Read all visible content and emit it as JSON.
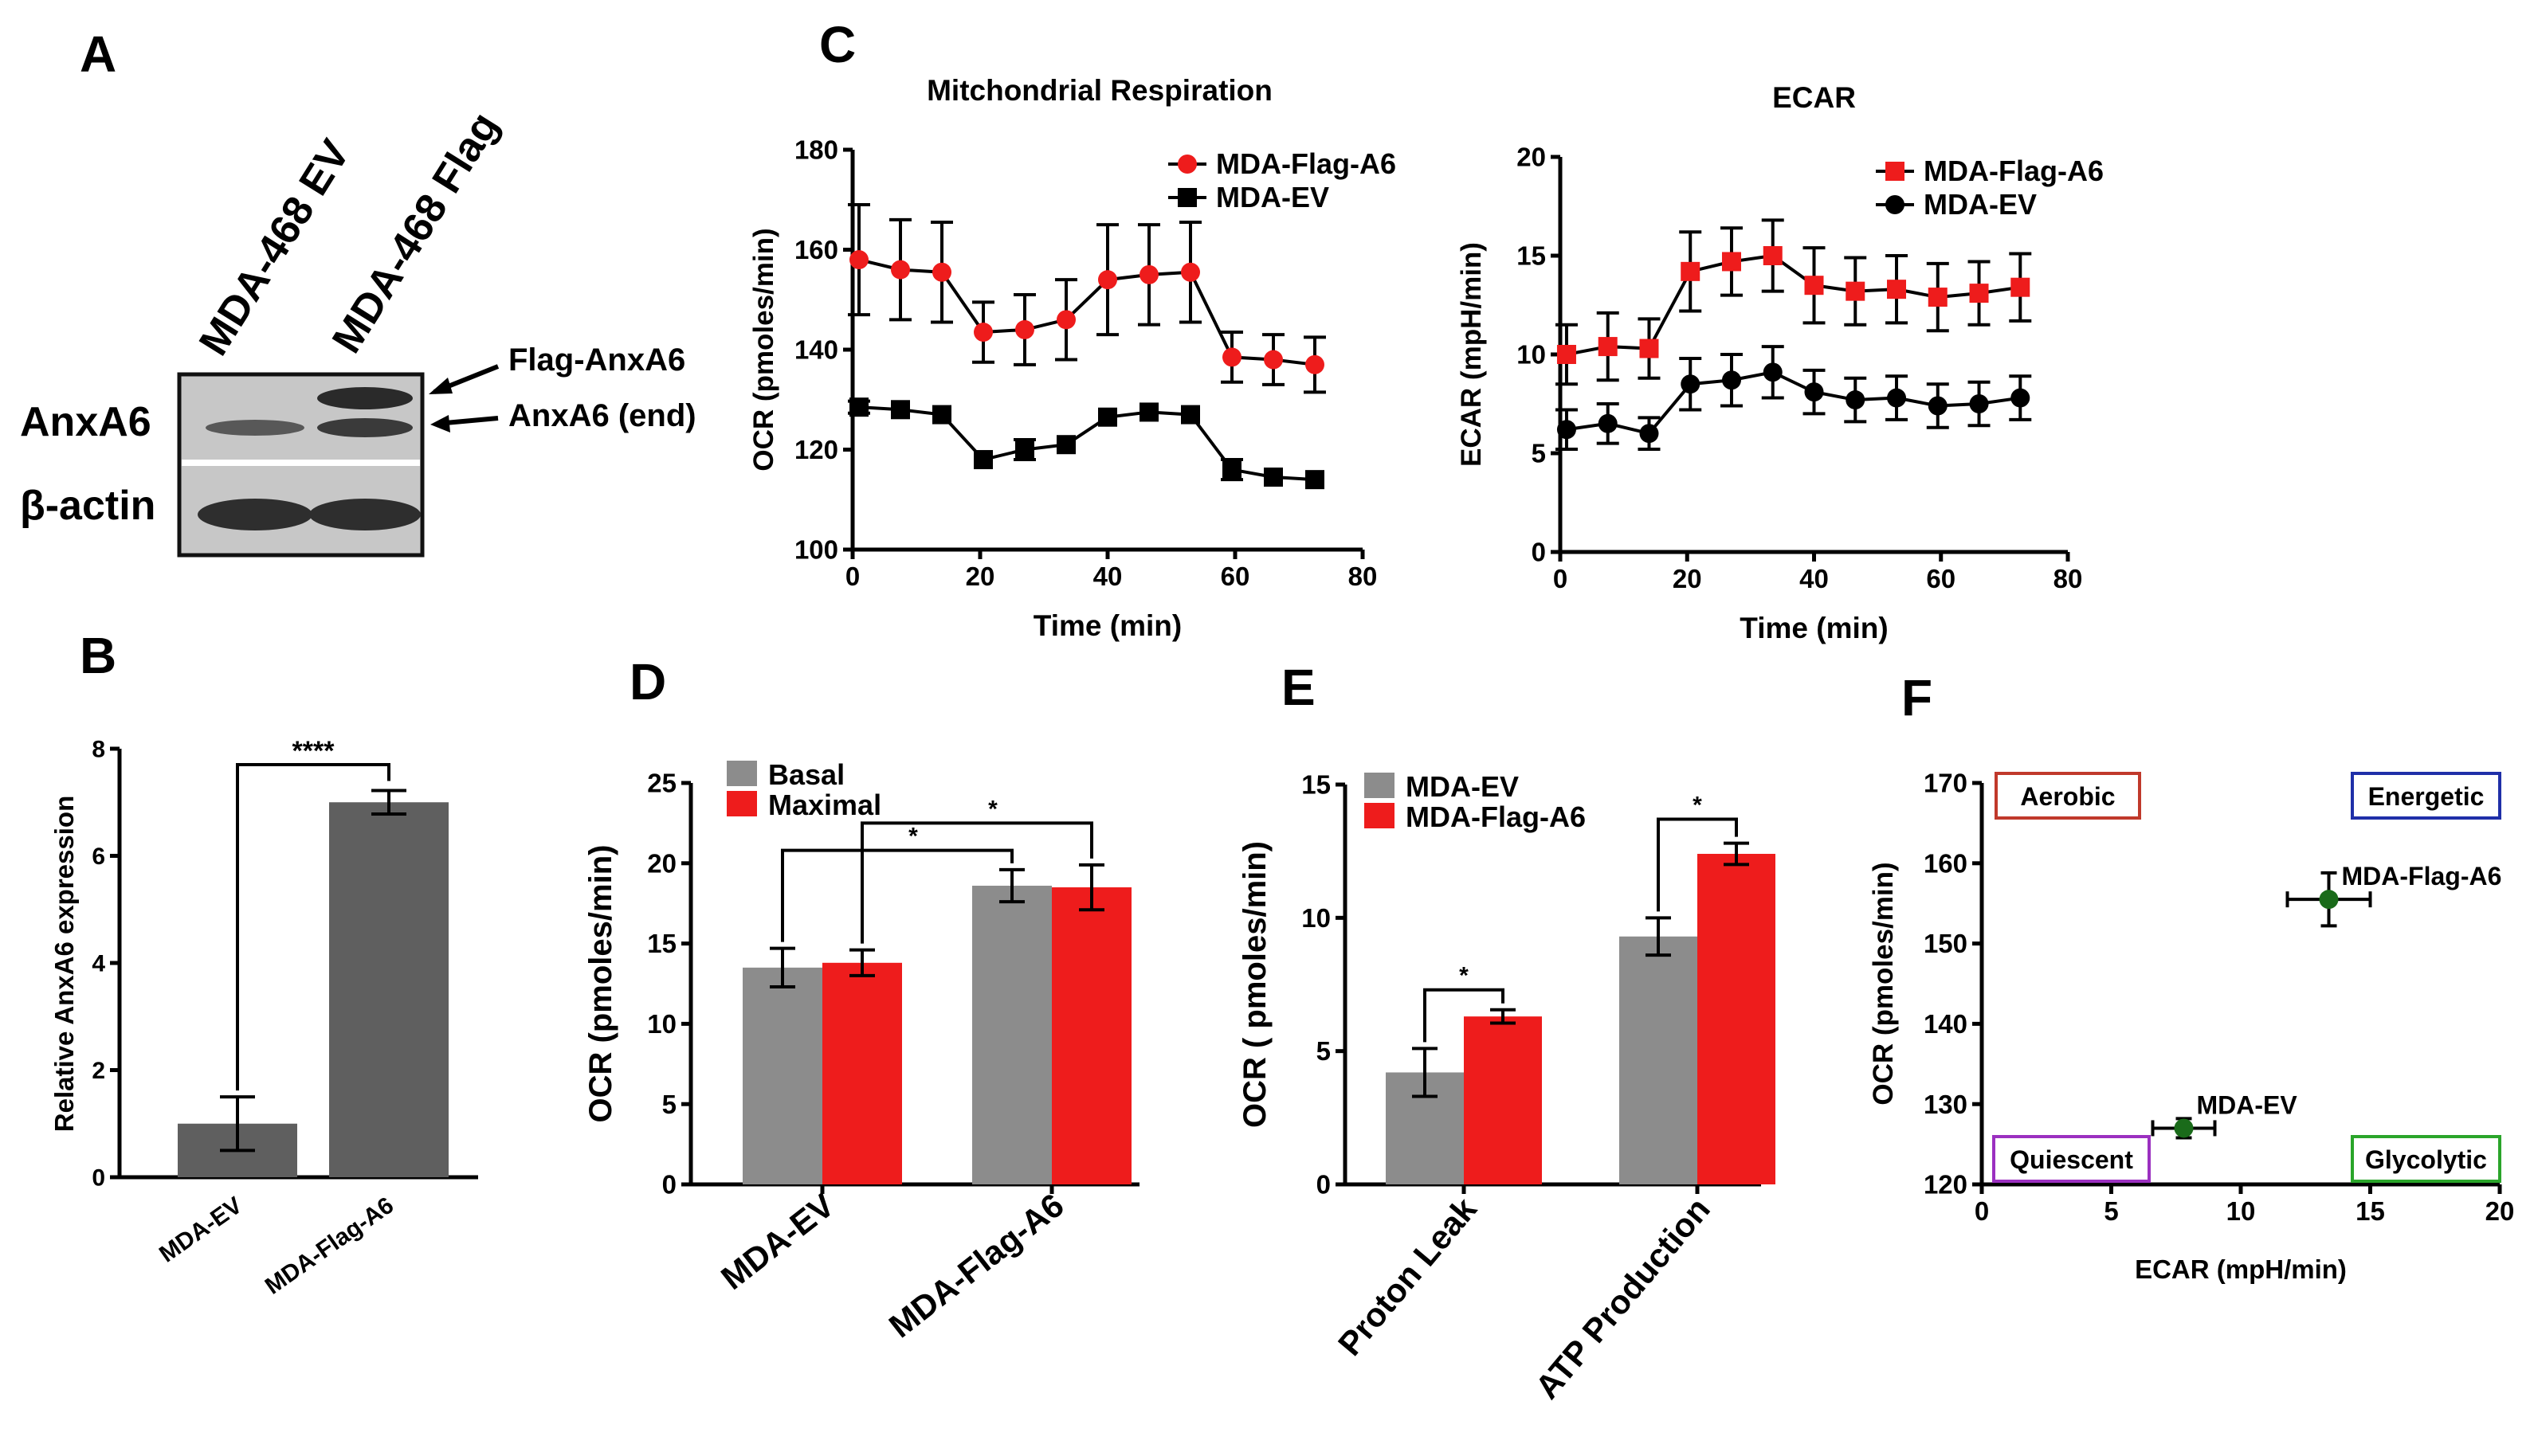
{
  "panels": {
    "a": "A",
    "b": "B",
    "c": "C",
    "d": "D",
    "e": "E",
    "f": "F"
  },
  "blot": {
    "lanes": [
      "MDA-468 EV",
      "MDA-468 Flag"
    ],
    "rows": [
      "AnxA6",
      "β-actin"
    ],
    "bands": [
      "Flag-AnxA6",
      "AnxA6 (end)"
    ]
  },
  "chart_data": [
    {
      "id": "B",
      "type": "bar",
      "categories": [
        "MDA-EV",
        "MDA-Flag-A6"
      ],
      "values": [
        1.0,
        7.0
      ],
      "errors": [
        0.5,
        0.22
      ],
      "color": "#5f5f5f",
      "ylabel": "Relative AnxA6 expression",
      "ylim": [
        0,
        8
      ],
      "yticks": [
        0,
        2,
        4,
        6,
        8
      ],
      "significance": "****"
    },
    {
      "id": "C1",
      "type": "line",
      "title": "Mitchondrial Respiration",
      "xlabel": "Time (min)",
      "ylabel": "OCR (pmoles/min)",
      "xlim": [
        0,
        80
      ],
      "ylim": [
        100,
        180
      ],
      "xticks": [
        0,
        20,
        40,
        60,
        80
      ],
      "yticks": [
        100,
        120,
        140,
        160,
        180
      ],
      "x": [
        1,
        7.5,
        14,
        20.5,
        27,
        33.5,
        40,
        46.5,
        53,
        59.5,
        66,
        72.5
      ],
      "series": [
        {
          "name": "MDA-Flag-A6",
          "color": "#ee1c1c",
          "marker": "circle",
          "values": [
            158,
            156,
            155.5,
            143.5,
            144,
            146,
            154,
            155,
            155.5,
            138.5,
            138,
            137
          ],
          "errors": [
            11,
            10,
            10,
            6,
            7,
            8,
            11,
            10,
            10,
            5,
            5,
            5.5
          ]
        },
        {
          "name": "MDA-EV",
          "color": "#000000",
          "marker": "square",
          "values": [
            128.5,
            128,
            127,
            118,
            120,
            121,
            126.5,
            127.5,
            127,
            116,
            114.5,
            114
          ],
          "errors": [
            1.2,
            1,
            1,
            1,
            2,
            1,
            1,
            1,
            1,
            2,
            1,
            1
          ]
        }
      ]
    },
    {
      "id": "C2",
      "type": "line",
      "title": "ECAR",
      "xlabel": "Time (min)",
      "ylabel": "ECAR (mpH/min)",
      "xlim": [
        0,
        80
      ],
      "ylim": [
        0,
        20
      ],
      "xticks": [
        0,
        20,
        40,
        60,
        80
      ],
      "yticks": [
        0,
        5,
        10,
        15,
        20
      ],
      "x": [
        1,
        7.5,
        14,
        20.5,
        27,
        33.5,
        40,
        46.5,
        53,
        59.5,
        66,
        72.5
      ],
      "series": [
        {
          "name": "MDA-Flag-A6",
          "color": "#ee1c1c",
          "marker": "square",
          "values": [
            10,
            10.4,
            10.3,
            14.2,
            14.7,
            15,
            13.5,
            13.2,
            13.3,
            12.9,
            13.1,
            13.4
          ],
          "errors": [
            1.5,
            1.7,
            1.5,
            2,
            1.7,
            1.8,
            1.9,
            1.7,
            1.7,
            1.7,
            1.6,
            1.7
          ]
        },
        {
          "name": "MDA-EV",
          "color": "#000000",
          "marker": "circle",
          "values": [
            6.2,
            6.5,
            6,
            8.5,
            8.7,
            9.1,
            8.1,
            7.7,
            7.8,
            7.4,
            7.5,
            7.8
          ],
          "errors": [
            1,
            1,
            0.8,
            1.3,
            1.3,
            1.3,
            1.1,
            1.1,
            1.1,
            1.1,
            1.1,
            1.1
          ]
        }
      ]
    },
    {
      "id": "D",
      "type": "bar",
      "categories": [
        "MDA-EV",
        "MDA-Flag-A6"
      ],
      "ylabel": "OCR (pmoles/min)",
      "ylim": [
        0,
        25
      ],
      "yticks": [
        0,
        5,
        10,
        15,
        20,
        25
      ],
      "series": [
        {
          "name": "Basal",
          "color": "#8c8c8c",
          "values": [
            13.5,
            18.6
          ],
          "errors": [
            1.2,
            1
          ]
        },
        {
          "name": "Maximal",
          "color": "#ee1c1c",
          "values": [
            13.8,
            18.5
          ],
          "errors": [
            0.8,
            1.4
          ]
        }
      ],
      "significance": [
        "*",
        "*"
      ]
    },
    {
      "id": "E",
      "type": "bar",
      "categories": [
        "Proton Leak",
        "ATP Production"
      ],
      "ylabel": "OCR ( pmoles/min)",
      "ylim": [
        0,
        15
      ],
      "yticks": [
        0,
        5,
        10,
        15
      ],
      "series": [
        {
          "name": "MDA-EV",
          "color": "#8c8c8c",
          "values": [
            4.2,
            9.3
          ],
          "errors": [
            0.9,
            0.7
          ]
        },
        {
          "name": "MDA-Flag-A6",
          "color": "#ee1c1c",
          "values": [
            6.3,
            12.4
          ],
          "errors": [
            0.25,
            0.4
          ]
        }
      ],
      "significance": [
        "*",
        "*"
      ]
    },
    {
      "id": "F",
      "type": "scatter",
      "xlabel": "ECAR (mpH/min)",
      "ylabel": "OCR (pmoles/min)",
      "xlim": [
        0,
        20
      ],
      "ylim": [
        120,
        170
      ],
      "xticks": [
        0,
        5,
        10,
        15,
        20
      ],
      "yticks": [
        120,
        130,
        140,
        150,
        160,
        170
      ],
      "color": "#1a6b1a",
      "points": [
        {
          "name": "MDA-Flag-A6",
          "x": 13.4,
          "y": 155.5,
          "xerr": 1.6,
          "yerr": 3.3
        },
        {
          "name": "MDA-EV",
          "x": 7.8,
          "y": 127,
          "xerr": 1.2,
          "yerr": 1.2
        }
      ],
      "quadrants": [
        {
          "label": "Aerobic",
          "color": "#c0392b"
        },
        {
          "label": "Energetic",
          "color": "#1f2fa8"
        },
        {
          "label": "Quiescent",
          "color": "#9b30c0"
        },
        {
          "label": "Glycolytic",
          "color": "#2aa52a"
        }
      ]
    }
  ]
}
